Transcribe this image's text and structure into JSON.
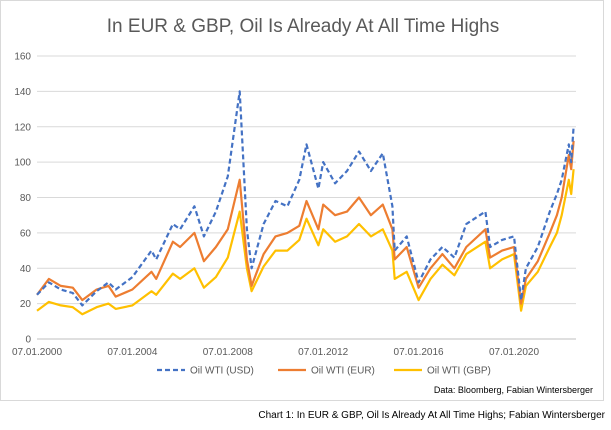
{
  "caption": "Chart 1: In EUR & GBP, Oil Is Already At All Time Highs; Fabian Wintersberger",
  "chart_data": {
    "type": "line",
    "title": "In EUR & GBP, Oil Is Already At All Time Highs",
    "xlabel": "",
    "ylabel": "",
    "xlim": [
      2000.0,
      2022.6
    ],
    "ylim": [
      0,
      160
    ],
    "y_ticks": [
      0,
      20,
      40,
      60,
      80,
      100,
      120,
      140,
      160
    ],
    "x_ticks": [
      2000.0,
      2004.0,
      2008.0,
      2012.0,
      2016.0,
      2020.0
    ],
    "x_tick_labels": [
      "07.01.2000",
      "07.01.2004",
      "07.01.2008",
      "07.01.2012",
      "07.01.2016",
      "07.01.2020"
    ],
    "grid": "horizontal",
    "legend_position": "bottom",
    "source_note": "Data: Bloomberg, Fabian Wintersberger",
    "x": [
      2000.0,
      2000.5,
      2001.0,
      2001.5,
      2001.9,
      2002.5,
      2003.0,
      2003.3,
      2004.0,
      2004.8,
      2005.0,
      2005.7,
      2006.0,
      2006.6,
      2007.0,
      2007.5,
      2008.0,
      2008.5,
      2008.8,
      2009.0,
      2009.5,
      2010.0,
      2010.5,
      2011.0,
      2011.3,
      2011.8,
      2012.0,
      2012.5,
      2013.0,
      2013.5,
      2014.0,
      2014.5,
      2014.9,
      2015.0,
      2015.5,
      2016.0,
      2016.5,
      2017.0,
      2017.5,
      2018.0,
      2018.8,
      2019.0,
      2019.5,
      2020.0,
      2020.3,
      2020.5,
      2021.0,
      2021.5,
      2021.8,
      2022.0,
      2022.3,
      2022.4,
      2022.5
    ],
    "series": [
      {
        "name": "Oil WTI (USD)",
        "color": "#4472c4",
        "dash": true,
        "values": [
          25,
          32,
          28,
          26,
          19,
          27,
          32,
          28,
          35,
          50,
          45,
          65,
          62,
          75,
          58,
          72,
          92,
          140,
          62,
          40,
          65,
          78,
          75,
          90,
          110,
          85,
          100,
          88,
          95,
          106,
          95,
          105,
          75,
          50,
          58,
          32,
          45,
          52,
          46,
          65,
          72,
          52,
          56,
          58,
          22,
          40,
          52,
          72,
          82,
          90,
          110,
          100,
          120
        ]
      },
      {
        "name": "Oil WTI (EUR)",
        "color": "#ed7d31",
        "dash": false,
        "values": [
          25,
          34,
          30,
          29,
          22,
          28,
          30,
          24,
          28,
          38,
          34,
          55,
          52,
          60,
          44,
          52,
          62,
          90,
          45,
          30,
          48,
          58,
          60,
          64,
          78,
          62,
          76,
          70,
          72,
          80,
          70,
          76,
          62,
          45,
          52,
          29,
          40,
          48,
          40,
          52,
          62,
          46,
          50,
          52,
          20,
          34,
          44,
          60,
          70,
          80,
          104,
          96,
          112
        ]
      },
      {
        "name": "Oil WTI (GBP)",
        "color": "#ffc000",
        "dash": false,
        "values": [
          16,
          21,
          19,
          18,
          14,
          18,
          20,
          17,
          19,
          27,
          25,
          37,
          34,
          40,
          29,
          35,
          46,
          72,
          40,
          27,
          41,
          50,
          50,
          56,
          68,
          53,
          62,
          55,
          58,
          65,
          58,
          62,
          50,
          34,
          38,
          22,
          34,
          42,
          36,
          48,
          55,
          40,
          45,
          48,
          16,
          30,
          38,
          52,
          60,
          70,
          90,
          82,
          96
        ]
      }
    ]
  }
}
